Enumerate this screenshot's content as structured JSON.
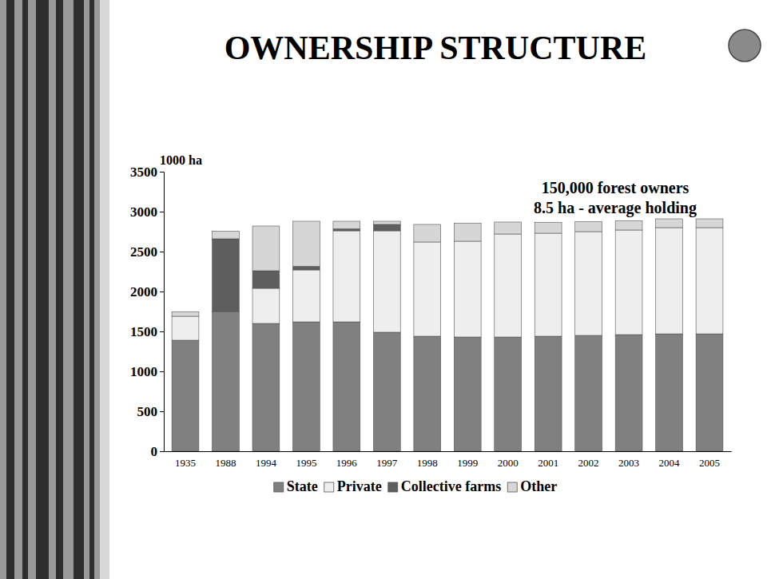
{
  "chart_data": {
    "type": "bar",
    "title": "OWNERSHIP STRUCTURE",
    "y_label": "1000 ha",
    "annotations": [
      "150,000 forest owners",
      "8.5 ha - average holding"
    ],
    "categories": [
      "1935",
      "1988",
      "1994",
      "1995",
      "1996",
      "1997",
      "1998",
      "1999",
      "2000",
      "2001",
      "2002",
      "2003",
      "2004",
      "2005"
    ],
    "series": [
      {
        "name": "State",
        "color": "#808080",
        "values": [
          1390,
          1750,
          1600,
          1620,
          1620,
          1490,
          1440,
          1430,
          1430,
          1440,
          1450,
          1460,
          1470,
          1470
        ]
      },
      {
        "name": "Private",
        "color": "#eeeeee",
        "values": [
          300,
          0,
          440,
          650,
          1140,
          1270,
          1180,
          1200,
          1290,
          1290,
          1300,
          1310,
          1330,
          1330
        ]
      },
      {
        "name": "Collective farms",
        "color": "#5e5e5e",
        "values": [
          0,
          910,
          220,
          45,
          25,
          80,
          0,
          0,
          0,
          0,
          0,
          0,
          0,
          0
        ]
      },
      {
        "name": "Other",
        "color": "#d6d6d6",
        "values": [
          55,
          95,
          560,
          565,
          95,
          40,
          220,
          225,
          150,
          135,
          125,
          115,
          110,
          110
        ]
      }
    ],
    "stacked": true,
    "legend": "bottom",
    "ylim": [
      0,
      3500
    ],
    "yticks": [
      0,
      500,
      1000,
      1500,
      2000,
      2500,
      3000,
      3500
    ]
  }
}
